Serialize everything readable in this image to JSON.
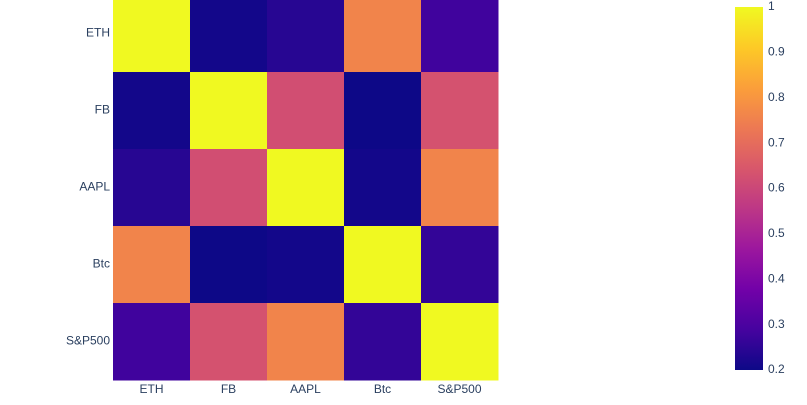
{
  "chart_data": {
    "type": "heatmap",
    "categories": [
      "ETH",
      "FB",
      "AAPL",
      "Btc",
      "S&P500"
    ],
    "y_categories": [
      "ETH",
      "FB",
      "AAPL",
      "Btc",
      "S&P500"
    ],
    "z": [
      [
        1,
        0.21,
        0.24,
        0.76,
        0.28
      ],
      [
        0.21,
        1,
        0.62,
        0.2,
        0.63
      ],
      [
        0.24,
        0.62,
        1,
        0.21,
        0.76
      ],
      [
        0.76,
        0.2,
        0.21,
        1,
        0.26
      ],
      [
        0.28,
        0.63,
        0.76,
        0.26,
        1
      ]
    ],
    "zlim": [
      0.2,
      1
    ],
    "zticks": [
      0.2,
      0.3,
      0.4,
      0.5,
      0.6,
      0.7,
      0.8,
      0.9,
      1
    ],
    "colorscale": [
      "#0d0887",
      "#46039f",
      "#7201a8",
      "#9c179e",
      "#bd3786",
      "#d8576b",
      "#ed7953",
      "#fb9f3a",
      "#fdca26",
      "#f0f921"
    ]
  }
}
